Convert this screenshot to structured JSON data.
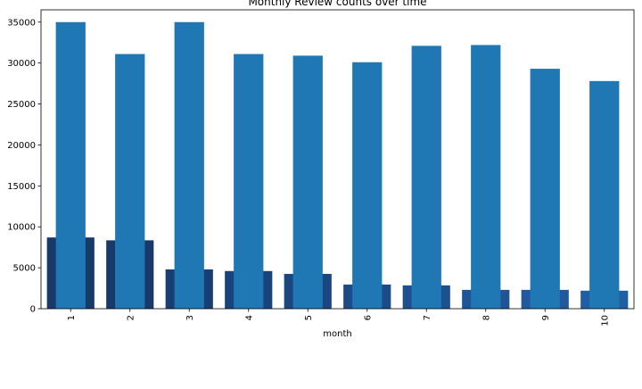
{
  "chart_data": {
    "type": "bar",
    "title": "Monthly Review counts over time",
    "xlabel": "month",
    "ylabel": "",
    "ylim": [
      0,
      36500
    ],
    "yticks": [
      0,
      5000,
      10000,
      15000,
      20000,
      25000,
      30000,
      35000
    ],
    "categories": [
      "1",
      "2",
      "3",
      "4",
      "5",
      "6",
      "7",
      "8",
      "9",
      "10"
    ],
    "series": [
      {
        "values": [
          8700,
          8350,
          4800,
          4600,
          4250,
          2950,
          2850,
          2300,
          2300,
          2200
        ],
        "colors": [
          "#173a6b",
          "#173a6b",
          "#183f74",
          "#19437b",
          "#1b4780",
          "#1c4c88",
          "#1e508e",
          "#1f5596",
          "#21599c",
          "#225ea2"
        ]
      },
      {
        "values": [
          35000,
          31100,
          35000,
          31100,
          30900,
          30100,
          32100,
          32200,
          29300,
          27800
        ],
        "color": "#1f77b4"
      }
    ],
    "grid": false,
    "legend": "none"
  }
}
